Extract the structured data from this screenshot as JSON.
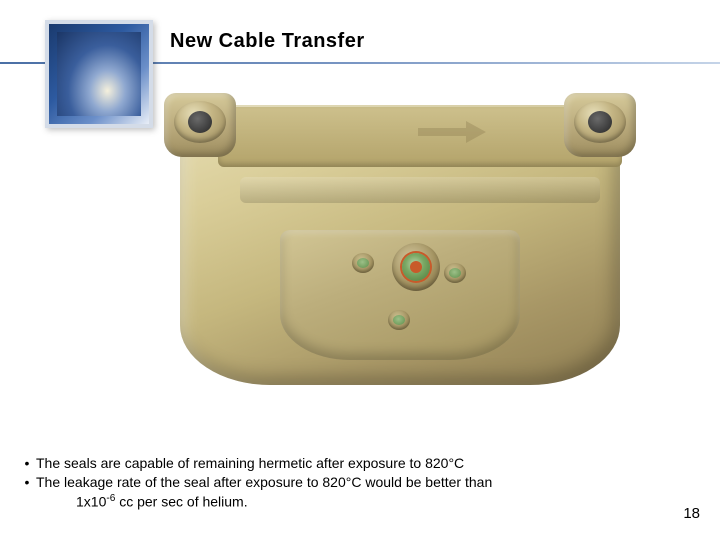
{
  "slide": {
    "title": "New Cable Transfer",
    "title_fontsize": 20,
    "title_color": "#000000",
    "header_line_gradient": [
      "#4a6fa5",
      "#7a97c4",
      "#c5d4e8"
    ],
    "logo": {
      "outer_gradient": [
        "#1a3a6e",
        "#2d5aa0",
        "#6b8fc9",
        "#e8eef7"
      ],
      "border_color": "#d4dce8"
    },
    "device": {
      "body_gradient": [
        "#e8dfb5",
        "#d9cd98",
        "#c5b77e",
        "#a89766",
        "#8f7e52"
      ],
      "panel_gradient": [
        "#d2c695",
        "#bcae7c",
        "#a3935f"
      ],
      "turret_count": 2,
      "connector_accent_color": "#c85a2a",
      "connector_inner_color": "#5f8f4c",
      "small_ports": 3
    },
    "bullets": [
      "The seals are capable of remaining hermetic after exposure to 820°C",
      "The leakage rate of the seal after exposure to 820°C would be better than"
    ],
    "bullet_continuation": {
      "prefix": "1x10",
      "exponent": "-6",
      "suffix": " cc per sec of helium."
    },
    "bullet_fontsize": 14,
    "page_number": "18",
    "page_number_fontsize": 15
  }
}
